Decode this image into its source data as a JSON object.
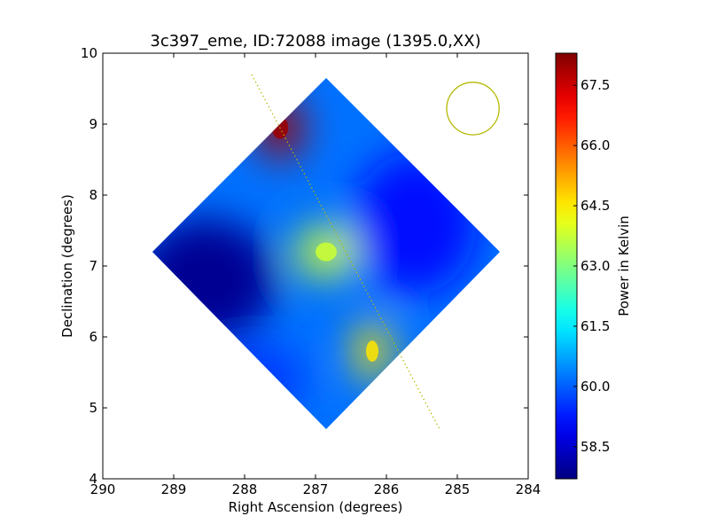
{
  "chart_data": {
    "type": "heatmap",
    "title": "3c397_eme, ID:72088 image (1395.0,XX)",
    "xlabel": "Right Ascension (degrees)",
    "ylabel": "Declination (degrees)",
    "xlim": [
      290,
      284
    ],
    "ylim": [
      4,
      10
    ],
    "xticks": [
      290,
      289,
      288,
      287,
      286,
      285,
      284
    ],
    "yticks": [
      4,
      5,
      6,
      7,
      8,
      9,
      10
    ],
    "xtick_labels": [
      "290",
      "289",
      "288",
      "287",
      "286",
      "285",
      "284"
    ],
    "ytick_labels": [
      "4",
      "5",
      "6",
      "7",
      "8",
      "9",
      "10"
    ],
    "colorbar": {
      "label": "Power in Kelvin",
      "range": [
        57.7,
        68.3
      ],
      "ticks": [
        58.5,
        60.0,
        61.5,
        63.0,
        64.5,
        66.0,
        67.5
      ],
      "tick_labels": [
        "58.5",
        "60.0",
        "61.5",
        "63.0",
        "64.5",
        "66.0",
        "67.5"
      ],
      "colormap": "jet"
    },
    "coverage": {
      "shape": "diamond",
      "vertices": [
        [
          286.85,
          9.65
        ],
        [
          284.4,
          7.2
        ],
        [
          286.85,
          4.7
        ],
        [
          289.3,
          7.2
        ]
      ]
    },
    "features": [
      {
        "ra": 287.5,
        "dec": 8.95,
        "value": 68.0
      },
      {
        "ra": 286.2,
        "dec": 5.8,
        "value": 64.6
      },
      {
        "ra": 286.85,
        "dec": 7.2,
        "value": 63.8
      },
      {
        "ra": 288.55,
        "dec": 6.8,
        "value": 57.9
      },
      {
        "ra": 285.6,
        "dec": 7.6,
        "value": 59.2
      },
      {
        "ra": 287.9,
        "dec": 5.4,
        "value": 59.6
      }
    ],
    "background_value": 60.2,
    "overlays": {
      "line": {
        "color": "#b5b800",
        "style": "dotted",
        "points": [
          [
            287.9,
            9.7
          ],
          [
            285.25,
            4.7
          ]
        ]
      },
      "circle": {
        "color": "#b5b800",
        "center": [
          284.78,
          9.22
        ],
        "radius_deg": 0.37
      }
    }
  }
}
